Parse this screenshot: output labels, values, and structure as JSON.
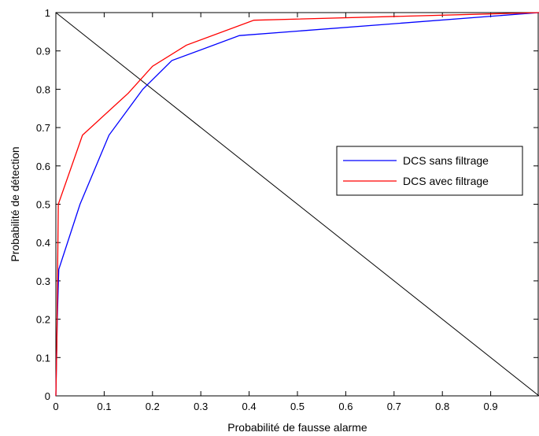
{
  "chart_data": {
    "type": "line",
    "title": "",
    "xlabel": "Probabilité de fausse alarme",
    "ylabel": "Probabilité de détection",
    "xlim": [
      0,
      1
    ],
    "ylim": [
      0,
      1
    ],
    "x_ticks": [
      0,
      0.1,
      0.2,
      0.3,
      0.4,
      0.5,
      0.6,
      0.7,
      0.8,
      0.9
    ],
    "y_ticks": [
      0,
      0.1,
      0.2,
      0.3,
      0.4,
      0.5,
      0.6,
      0.7,
      0.8,
      0.9,
      1
    ],
    "grid": false,
    "legend_position": "right",
    "series": [
      {
        "name": "DCS sans filtrage",
        "color": "#0000ff",
        "x": [
          0,
          0.003,
          0.006,
          0.05,
          0.11,
          0.18,
          0.24,
          0.38,
          1
        ],
        "y": [
          0,
          0.2,
          0.33,
          0.5,
          0.68,
          0.8,
          0.875,
          0.94,
          1
        ]
      },
      {
        "name": "DCS avec filtrage",
        "color": "#ff0000",
        "x": [
          0,
          0.002,
          0.005,
          0.055,
          0.15,
          0.2,
          0.27,
          0.41,
          1
        ],
        "y": [
          0,
          0.13,
          0.5,
          0.68,
          0.79,
          0.86,
          0.915,
          0.98,
          1
        ]
      },
      {
        "color": "#000000",
        "x": [
          0,
          1
        ],
        "y": [
          1,
          0
        ]
      }
    ]
  }
}
